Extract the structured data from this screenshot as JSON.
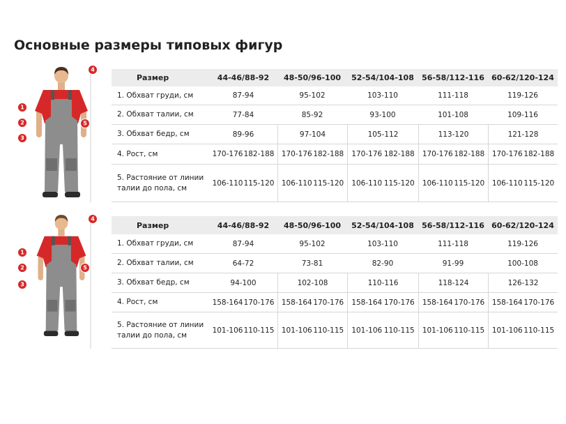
{
  "title": "Основные размеры типовых фигур",
  "tables": [
    {
      "markers": [
        "1",
        "2",
        "3",
        "4",
        "5"
      ],
      "header": [
        "Размер",
        "44-46/88-92",
        "48-50/96-100",
        "52-54/104-108",
        "56-58/112-116",
        "60-62/120-124"
      ],
      "rows": [
        [
          "1. Обхват груди, см",
          "87-94",
          "95-102",
          "103-110",
          "111-118",
          "119-126"
        ],
        [
          "2. Обхват талии, см",
          "77-84",
          "85-92",
          "93-100",
          "101-108",
          "109-116"
        ],
        [
          "3. Обхват бедр, см",
          "89-96",
          "97-104",
          "105-112",
          "113-120",
          "121-128"
        ],
        [
          "4. Рост, см",
          [
            "170-176",
            "182-188"
          ],
          [
            "170-176",
            "182-188"
          ],
          [
            "170-176",
            "182-188"
          ],
          [
            "170-176",
            "182-188"
          ],
          [
            "170-176",
            "182-188"
          ]
        ],
        [
          "5. Растояние от линии талии до пола, см",
          [
            "106-110",
            "115-120"
          ],
          [
            "106-110",
            "115-120"
          ],
          [
            "106-110",
            "115-120"
          ],
          [
            "106-110",
            "115-120"
          ],
          [
            "106-110",
            "115-120"
          ]
        ]
      ]
    },
    {
      "markers": [
        "1",
        "2",
        "3",
        "4",
        "5"
      ],
      "header": [
        "Размер",
        "44-46/88-92",
        "48-50/96-100",
        "52-54/104-108",
        "56-58/112-116",
        "60-62/120-124"
      ],
      "rows": [
        [
          "1. Обхват груди, см",
          "87-94",
          "95-102",
          "103-110",
          "111-118",
          "119-126"
        ],
        [
          "2. Обхват талии, см",
          "64-72",
          "73-81",
          "82-90",
          "91-99",
          "100-108"
        ],
        [
          "3. Обхват бедр, см",
          "94-100",
          "102-108",
          "110-116",
          "118-124",
          "126-132"
        ],
        [
          "4. Рост, см",
          [
            "158-164",
            "170-176"
          ],
          [
            "158-164",
            "170-176"
          ],
          [
            "158-164",
            "170-176"
          ],
          [
            "158-164",
            "170-176"
          ],
          [
            "158-164",
            "170-176"
          ]
        ],
        [
          "5. Растояние от линии талии до пола, см",
          [
            "101-106",
            "110-115"
          ],
          [
            "101-106",
            "110-115"
          ],
          [
            "101-106",
            "110-115"
          ],
          [
            "101-106",
            "110-115"
          ],
          [
            "101-106",
            "110-115"
          ]
        ]
      ]
    }
  ]
}
